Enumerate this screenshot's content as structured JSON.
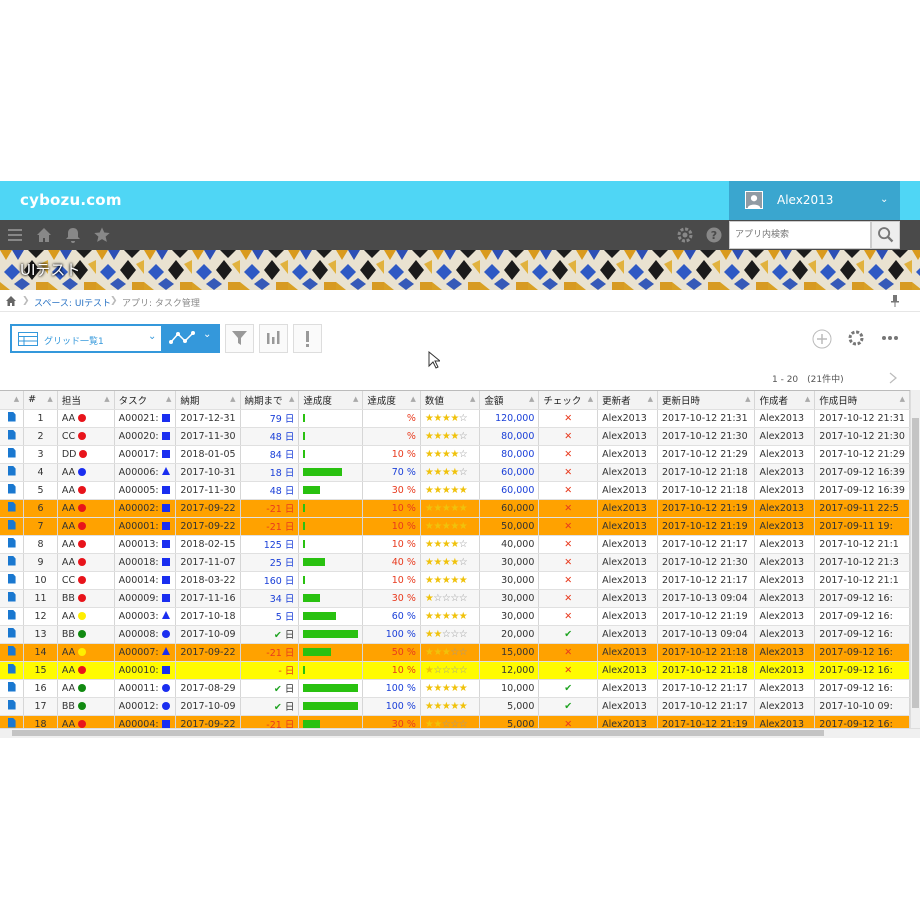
{
  "app": {
    "logo": "cybozu.com",
    "username": "Alex2013"
  },
  "search": {
    "placeholder": "アプリ内検索"
  },
  "banner": {
    "title": "UIテスト"
  },
  "breadcrumb": {
    "space": "スペース: UIテスト",
    "app": "アプリ: タスク管理"
  },
  "toolbar": {
    "view_label": "グリッド一覧1",
    "paging": "1 - 20　(21件中)"
  },
  "colors": {
    "topbar": "#4fd6f5",
    "accent": "#3498db",
    "row_orange": "#ffa200",
    "row_yellow": "#fffb00",
    "bar_green": "#29c110"
  },
  "icons": [
    "home-icon",
    "bell-icon",
    "star-icon",
    "gear-icon",
    "help-icon",
    "search-icon",
    "menu-icon",
    "filter-icon",
    "chart-icon",
    "alert-icon",
    "plus-icon",
    "settings-icon",
    "more-icon",
    "file-icon"
  ],
  "grid": {
    "headers": [
      "#",
      "担当",
      "タスク",
      "納期",
      "納期まで",
      "達成度",
      "達成度",
      "数値",
      "金額",
      "チェック",
      "更新者",
      "更新日時",
      "作成者",
      "作成日時"
    ],
    "rows": [
      {
        "no": "1",
        "person": "AA",
        "pcolor": "red",
        "task": "A00021:",
        "shape": "square",
        "due": "2017-12-31",
        "until": "79 日",
        "until_color": "blue",
        "progress": 0,
        "pct": "%",
        "pct_color": "red",
        "stars": 4,
        "amount": "120,000",
        "amount_color": "blue",
        "check": "x",
        "updater": "Alex2013",
        "updated": "2017-10-12 21:31",
        "creator": "Alex2013",
        "created": "2017-10-12 21:31",
        "style": "odd"
      },
      {
        "no": "2",
        "person": "CC",
        "pcolor": "red",
        "task": "A00020:",
        "shape": "square",
        "due": "2017-11-30",
        "until": "48 日",
        "until_color": "blue",
        "progress": 0,
        "pct": "%",
        "pct_color": "red",
        "stars": 4,
        "amount": "80,000",
        "amount_color": "blue",
        "check": "x",
        "updater": "Alex2013",
        "updated": "2017-10-12 21:30",
        "creator": "Alex2013",
        "created": "2017-10-12 21:30",
        "style": "even"
      },
      {
        "no": "3",
        "person": "DD",
        "pcolor": "red",
        "task": "A00017:",
        "shape": "square",
        "due": "2018-01-05",
        "until": "84 日",
        "until_color": "blue",
        "progress": 2,
        "pct": "10 %",
        "pct_color": "red",
        "stars": 4,
        "amount": "80,000",
        "amount_color": "blue",
        "check": "x",
        "updater": "Alex2013",
        "updated": "2017-10-12 21:29",
        "creator": "Alex2013",
        "created": "2017-10-12 21:29",
        "style": "odd"
      },
      {
        "no": "4",
        "person": "AA",
        "pcolor": "blue",
        "task": "A00006:",
        "shape": "triangle",
        "due": "2017-10-31",
        "until": "18 日",
        "until_color": "blue",
        "progress": 70,
        "pct": "70 %",
        "pct_color": "blue",
        "stars": 4,
        "amount": "60,000",
        "amount_color": "blue",
        "check": "x",
        "updater": "Alex2013",
        "updated": "2017-10-12 21:18",
        "creator": "Alex2013",
        "created": "2017-09-12 16:39",
        "style": "even"
      },
      {
        "no": "5",
        "person": "AA",
        "pcolor": "red",
        "task": "A00005:",
        "shape": "square",
        "due": "2017-11-30",
        "until": "48 日",
        "until_color": "blue",
        "progress": 30,
        "pct": "30 %",
        "pct_color": "red",
        "stars": 5,
        "amount": "60,000",
        "amount_color": "blue",
        "check": "x",
        "updater": "Alex2013",
        "updated": "2017-10-12 21:18",
        "creator": "Alex2013",
        "created": "2017-09-12 16:39",
        "style": "odd"
      },
      {
        "no": "6",
        "person": "AA",
        "pcolor": "red",
        "task": "A00002:",
        "shape": "square",
        "due": "2017-09-22",
        "until": "-21 日",
        "until_color": "red",
        "progress": 2,
        "pct": "10 %",
        "pct_color": "red",
        "stars": 5,
        "amount": "60,000",
        "amount_color": "black",
        "check": "x",
        "updater": "Alex2013",
        "updated": "2017-10-12 21:19",
        "creator": "Alex2013",
        "created": "2017-09-11 22:5",
        "style": "orange"
      },
      {
        "no": "7",
        "person": "AA",
        "pcolor": "red",
        "task": "A00001:",
        "shape": "square",
        "due": "2017-09-22",
        "until": "-21 日",
        "until_color": "red",
        "progress": 2,
        "pct": "10 %",
        "pct_color": "red",
        "stars": 5,
        "amount": "50,000",
        "amount_color": "black",
        "check": "x",
        "updater": "Alex2013",
        "updated": "2017-10-12 21:19",
        "creator": "Alex2013",
        "created": "2017-09-11 19:",
        "style": "orange"
      },
      {
        "no": "8",
        "person": "AA",
        "pcolor": "red",
        "task": "A00013:",
        "shape": "square",
        "due": "2018-02-15",
        "until": "125 日",
        "until_color": "blue",
        "progress": 2,
        "pct": "10 %",
        "pct_color": "red",
        "stars": 4,
        "amount": "40,000",
        "amount_color": "black",
        "check": "x",
        "updater": "Alex2013",
        "updated": "2017-10-12 21:17",
        "creator": "Alex2013",
        "created": "2017-10-12 21:1",
        "style": "odd"
      },
      {
        "no": "9",
        "person": "AA",
        "pcolor": "red",
        "task": "A00018:",
        "shape": "square",
        "due": "2017-11-07",
        "until": "25 日",
        "until_color": "blue",
        "progress": 40,
        "pct": "40 %",
        "pct_color": "red",
        "stars": 4,
        "amount": "30,000",
        "amount_color": "black",
        "check": "x",
        "updater": "Alex2013",
        "updated": "2017-10-12 21:30",
        "creator": "Alex2013",
        "created": "2017-10-12 21:3",
        "style": "even"
      },
      {
        "no": "10",
        "person": "CC",
        "pcolor": "red",
        "task": "A00014:",
        "shape": "square",
        "due": "2018-03-22",
        "until": "160 日",
        "until_color": "blue",
        "progress": 2,
        "pct": "10 %",
        "pct_color": "red",
        "stars": 5,
        "amount": "30,000",
        "amount_color": "black",
        "check": "x",
        "updater": "Alex2013",
        "updated": "2017-10-12 21:17",
        "creator": "Alex2013",
        "created": "2017-10-12 21:1",
        "style": "odd"
      },
      {
        "no": "11",
        "person": "BB",
        "pcolor": "red",
        "task": "A00009:",
        "shape": "square",
        "due": "2017-11-16",
        "until": "34 日",
        "until_color": "blue",
        "progress": 30,
        "pct": "30 %",
        "pct_color": "red",
        "stars": 1,
        "amount": "30,000",
        "amount_color": "black",
        "check": "x",
        "updater": "Alex2013",
        "updated": "2017-10-13 09:04",
        "creator": "Alex2013",
        "created": "2017-09-12 16:",
        "style": "even"
      },
      {
        "no": "12",
        "person": "AA",
        "pcolor": "yellow",
        "task": "A00003:",
        "shape": "triangle",
        "due": "2017-10-18",
        "until": "5 日",
        "until_color": "blue",
        "progress": 60,
        "pct": "60 %",
        "pct_color": "blue",
        "stars": 5,
        "amount": "30,000",
        "amount_color": "black",
        "check": "x",
        "updater": "Alex2013",
        "updated": "2017-10-12 21:19",
        "creator": "Alex2013",
        "created": "2017-09-12 16:",
        "style": "odd"
      },
      {
        "no": "13",
        "person": "BB",
        "pcolor": "green",
        "task": "A00008:",
        "shape": "circle",
        "due": "2017-10-09",
        "until": "✔ 日",
        "until_color": "green",
        "progress": 100,
        "pct": "100 %",
        "pct_color": "blue",
        "stars": 2,
        "amount": "20,000",
        "amount_color": "black",
        "check": "ok",
        "updater": "Alex2013",
        "updated": "2017-10-13 09:04",
        "creator": "Alex2013",
        "created": "2017-09-12 16:",
        "style": "even"
      },
      {
        "no": "14",
        "person": "AA",
        "pcolor": "yellow",
        "task": "A00007:",
        "shape": "triangle",
        "due": "2017-09-22",
        "until": "-21 日",
        "until_color": "red",
        "progress": 50,
        "pct": "50 %",
        "pct_color": "red",
        "stars": 3,
        "amount": "15,000",
        "amount_color": "black",
        "check": "x",
        "updater": "Alex2013",
        "updated": "2017-10-12 21:18",
        "creator": "Alex2013",
        "created": "2017-09-12 16:",
        "style": "orange"
      },
      {
        "no": "15",
        "person": "AA",
        "pcolor": "red",
        "task": "A00010:",
        "shape": "square",
        "due": "",
        "until": "- 日",
        "until_color": "red",
        "progress": 2,
        "pct": "10 %",
        "pct_color": "red",
        "stars": 1,
        "amount": "12,000",
        "amount_color": "black",
        "check": "x",
        "updater": "Alex2013",
        "updated": "2017-10-12 21:18",
        "creator": "Alex2013",
        "created": "2017-09-12 16:",
        "style": "yellow"
      },
      {
        "no": "16",
        "person": "AA",
        "pcolor": "green",
        "task": "A00011:",
        "shape": "circle",
        "due": "2017-08-29",
        "until": "✔ 日",
        "until_color": "green",
        "progress": 100,
        "pct": "100 %",
        "pct_color": "blue",
        "stars": 5,
        "amount": "10,000",
        "amount_color": "black",
        "check": "ok",
        "updater": "Alex2013",
        "updated": "2017-10-12 21:17",
        "creator": "Alex2013",
        "created": "2017-09-12 16:",
        "style": "odd"
      },
      {
        "no": "17",
        "person": "BB",
        "pcolor": "green",
        "task": "A00012:",
        "shape": "circle",
        "due": "2017-10-09",
        "until": "✔ 日",
        "until_color": "green",
        "progress": 100,
        "pct": "100 %",
        "pct_color": "blue",
        "stars": 5,
        "amount": "5,000",
        "amount_color": "black",
        "check": "ok",
        "updater": "Alex2013",
        "updated": "2017-10-12 21:17",
        "creator": "Alex2013",
        "created": "2017-10-10 09:",
        "style": "even"
      },
      {
        "no": "18",
        "person": "AA",
        "pcolor": "red",
        "task": "A00004:",
        "shape": "square",
        "due": "2017-09-22",
        "until": "-21 日",
        "until_color": "red",
        "progress": 30,
        "pct": "30 %",
        "pct_color": "red",
        "stars": 2,
        "amount": "5,000",
        "amount_color": "black",
        "check": "x",
        "updater": "Alex2013",
        "updated": "2017-10-12 21:19",
        "creator": "Alex2013",
        "created": "2017-09-12 16:",
        "style": "orange"
      }
    ]
  }
}
